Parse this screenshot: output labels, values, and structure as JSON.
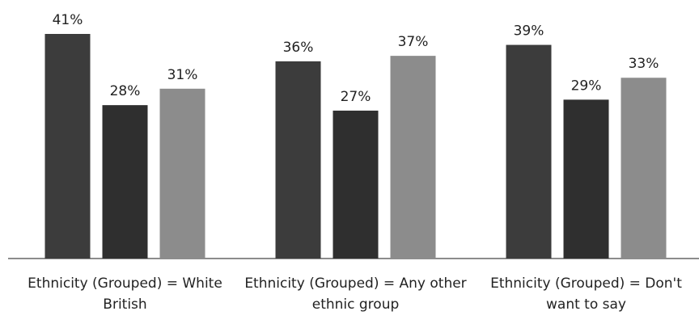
{
  "chart_data": {
    "type": "bar",
    "categories": [
      "Ethnicity (Grouped) = White British",
      "Ethnicity (Grouped) = Any other ethnic group",
      "Ethnicity (Grouped) = Don't want to say"
    ],
    "series": [
      {
        "color": "#3c3c3c",
        "values": [
          41,
          36,
          39
        ],
        "value_labels": [
          "41%",
          "36%",
          "39%"
        ]
      },
      {
        "color": "#2f2f2f",
        "values": [
          28,
          27,
          29
        ],
        "value_labels": [
          "28%",
          "27%",
          "29%"
        ]
      },
      {
        "color": "#8c8c8c",
        "values": [
          31,
          37,
          33
        ],
        "value_labels": [
          "31%",
          "37%",
          "33%"
        ]
      }
    ]
  }
}
